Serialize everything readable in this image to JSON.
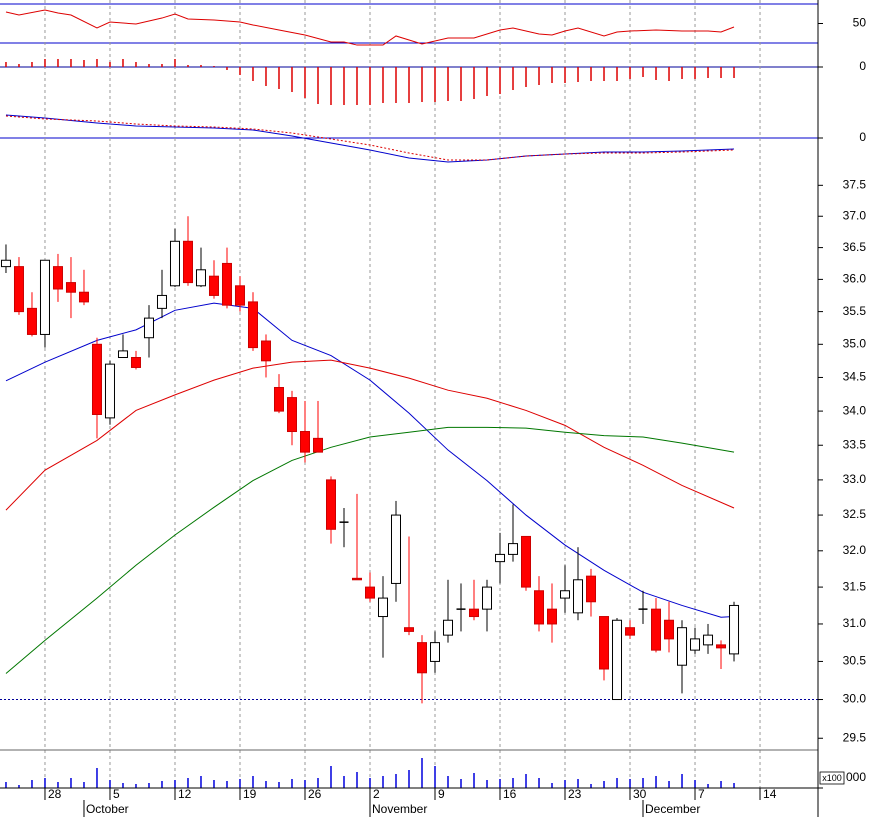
{
  "chart_data": [
    {
      "type": "line",
      "xlim": [
        -0.46,
        62.46
      ],
      "ylim": [
        17.7,
        74.1
      ],
      "yticks": [
        50
      ],
      "hlines": [
        30,
        70
      ],
      "hline_color": "#0000cc",
      "series": [
        {
          "color": "#dd0000",
          "x": [
            0,
            1,
            3,
            4,
            5,
            7,
            8,
            10,
            12,
            13,
            14,
            16,
            18,
            19,
            21,
            23,
            25,
            26,
            27,
            28,
            29,
            30,
            32,
            34,
            36,
            38,
            39,
            41,
            42,
            43,
            44,
            46,
            47,
            48,
            50,
            52,
            54,
            55,
            56
          ],
          "values": [
            61.8,
            58.7,
            63.8,
            60.8,
            58.7,
            45.4,
            51.5,
            49.5,
            55.6,
            59.7,
            54.6,
            53.6,
            51.5,
            48.5,
            43.3,
            38.2,
            31.0,
            31.0,
            27.9,
            27.9,
            27.9,
            37.2,
            29.0,
            35.1,
            35.1,
            43.3,
            45.4,
            39.2,
            38.2,
            42.3,
            45.4,
            37.2,
            41.3,
            42.3,
            43.3,
            42.3,
            42.3,
            41.3,
            46.4
          ]
        }
      ]
    },
    {
      "type": "bar",
      "xlim": [
        -0.46,
        62.46
      ],
      "ylim": [
        -43,
        12
      ],
      "yticks": [
        0
      ],
      "grid": true,
      "grid_color": "#000099",
      "color": "#dd0000",
      "x": [
        0,
        1,
        2,
        3,
        4,
        5,
        6,
        7,
        8,
        9,
        10,
        11,
        12,
        13,
        14,
        15,
        16,
        17,
        18,
        19,
        20,
        21,
        22,
        23,
        24,
        25,
        26,
        27,
        28,
        29,
        30,
        31,
        32,
        33,
        34,
        35,
        36,
        37,
        38,
        39,
        40,
        41,
        42,
        43,
        44,
        45,
        46,
        47,
        48,
        49,
        50,
        51,
        52,
        53,
        54,
        55,
        56
      ],
      "values": [
        5,
        3,
        5,
        8,
        8,
        8,
        7,
        8,
        5,
        8,
        5,
        3,
        3,
        8,
        2,
        2,
        1,
        -3,
        -8,
        -14,
        -19,
        -22,
        -25,
        -31,
        -37,
        -38,
        -38,
        -38,
        -38,
        -36,
        -36,
        -36,
        -35,
        -35,
        -34,
        -34,
        -32,
        -29,
        -27,
        -23,
        -20,
        -18,
        -16,
        -16,
        -15,
        -14,
        -14,
        -14,
        -12,
        -10,
        -13,
        -14,
        -12,
        -12,
        -11,
        -11,
        -11
      ]
    },
    {
      "type": "line",
      "xlim": [
        -0.46,
        62.46
      ],
      "ylim": [
        -32,
        28
      ],
      "yticks": [
        0
      ],
      "grid": true,
      "grid_color": "#0000cc",
      "series": [
        {
          "color": "#0000cc",
          "x": [
            0,
            3,
            7,
            10,
            13,
            16,
            19,
            22,
            25,
            28,
            31,
            34,
            37,
            40,
            43,
            46,
            49,
            52,
            56
          ],
          "values": [
            23,
            20,
            15,
            12,
            11,
            10,
            8,
            2,
            -5,
            -12,
            -20,
            -24,
            -22,
            -18,
            -16,
            -14,
            -14,
            -13,
            -11
          ]
        },
        {
          "color": "#dd0000",
          "dashed": true,
          "x": [
            0,
            3,
            7,
            10,
            13,
            16,
            19,
            22,
            25,
            28,
            31,
            34,
            37,
            40,
            43,
            46,
            49,
            52,
            56
          ],
          "values": [
            22,
            19,
            17,
            14,
            12,
            11,
            9,
            5,
            -1,
            -7,
            -15,
            -22,
            -22,
            -18,
            -16,
            -15,
            -15,
            -14,
            -12
          ]
        }
      ]
    },
    {
      "type": "candlestick",
      "log_scale": true,
      "xlim": [
        -0.46,
        62.46
      ],
      "ylim": [
        29.35,
        37.75
      ],
      "yticks": [
        29.5,
        {
          "value": 30,
          "label": "30.0"
        },
        30.5,
        {
          "value": 31,
          "label": "31.0"
        },
        31.5,
        {
          "value": 32,
          "label": "32.0"
        },
        32.5,
        {
          "value": 33,
          "label": "33.0"
        },
        33.5,
        {
          "value": 34,
          "label": "34.0"
        },
        34.5,
        {
          "value": 35,
          "label": "35.0"
        },
        35.5,
        {
          "value": 36,
          "label": "36.0"
        },
        36.5,
        {
          "value": 37,
          "label": "37.0"
        },
        37.5
      ],
      "hlines": [
        30
      ],
      "hline_color": "#000099",
      "hline_dashed": true,
      "up_color": "#ffffff",
      "down_color": "#ff0000",
      "doji_color": "#000000",
      "candles": {
        "x": [
          0,
          1,
          2,
          3,
          4,
          5,
          6,
          7,
          8,
          9,
          10,
          11,
          12,
          13,
          14,
          15,
          16,
          17,
          18,
          19,
          20,
          21,
          22,
          23,
          24,
          25,
          26,
          27,
          28,
          29,
          30,
          31,
          32,
          33,
          34,
          35,
          36,
          37,
          38,
          39,
          40,
          41,
          42,
          43,
          44,
          45,
          46,
          47,
          48,
          49,
          50,
          51,
          52,
          53,
          54,
          55,
          56
        ],
        "open": [
          36.2,
          36.2,
          35.55,
          35.15,
          36.2,
          35.95,
          35.8,
          35.0,
          33.9,
          34.8,
          34.8,
          35.1,
          35.55,
          35.9,
          36.6,
          35.9,
          36.05,
          36.25,
          35.9,
          35.65,
          35.05,
          34.35,
          34.2,
          33.7,
          33.6,
          33.0,
          32.4,
          31.62,
          31.5,
          31.1,
          31.55,
          30.95,
          30.75,
          30.5,
          30.85,
          31.2,
          31.2,
          31.2,
          31.85,
          31.95,
          32.2,
          31.45,
          31.2,
          31.35,
          31.15,
          31.65,
          31.1,
          30.0,
          30.95,
          31.2,
          31.2,
          31.05,
          30.45,
          30.65,
          30.72,
          30.72,
          30.6
        ],
        "high": [
          36.55,
          36.35,
          35.8,
          36.3,
          36.4,
          36.35,
          36.15,
          35.1,
          34.75,
          35.15,
          34.9,
          35.6,
          36.15,
          36.8,
          37.0,
          36.5,
          36.3,
          36.5,
          36.05,
          35.8,
          35.15,
          34.55,
          34.3,
          34.15,
          34.15,
          33.05,
          32.6,
          32.8,
          31.7,
          31.65,
          32.7,
          32.2,
          30.85,
          30.9,
          31.6,
          31.55,
          31.6,
          31.6,
          32.25,
          32.65,
          32.2,
          31.65,
          31.55,
          31.8,
          32.05,
          31.75,
          31.1,
          31.08,
          31.05,
          31.45,
          31.35,
          31.3,
          31.05,
          30.95,
          31.0,
          30.78,
          31.3
        ],
        "low": [
          36.1,
          35.45,
          35.12,
          34.95,
          35.65,
          35.4,
          35.6,
          33.6,
          33.8,
          34.8,
          34.62,
          34.8,
          35.4,
          35.88,
          35.9,
          35.88,
          35.7,
          35.55,
          35.5,
          34.9,
          34.5,
          33.97,
          33.5,
          33.25,
          33.4,
          32.1,
          32.05,
          31.6,
          31.3,
          30.55,
          31.3,
          30.85,
          29.95,
          30.35,
          30.75,
          30.9,
          31.05,
          30.9,
          31.55,
          31.85,
          31.45,
          30.9,
          30.75,
          31.15,
          31.05,
          31.1,
          30.25,
          30.0,
          30.8,
          31.0,
          30.62,
          30.62,
          30.08,
          30.6,
          30.6,
          30.4,
          30.5
        ],
        "close": [
          36.3,
          35.5,
          35.15,
          36.3,
          35.85,
          35.8,
          35.65,
          33.95,
          34.7,
          34.9,
          34.65,
          35.4,
          35.75,
          36.6,
          35.95,
          36.15,
          35.75,
          35.6,
          35.6,
          34.95,
          34.75,
          34.0,
          33.7,
          33.4,
          33.4,
          32.3,
          32.4,
          31.6,
          31.35,
          31.35,
          32.5,
          30.9,
          30.35,
          30.75,
          31.05,
          31.2,
          31.1,
          31.5,
          31.95,
          32.1,
          31.5,
          31.0,
          31.0,
          31.45,
          31.6,
          31.3,
          30.4,
          31.05,
          30.85,
          31.2,
          30.65,
          30.8,
          30.95,
          30.8,
          30.85,
          30.68,
          31.25
        ]
      },
      "series": [
        {
          "color": "#0000cc",
          "x": [
            0,
            3,
            7,
            10,
            13,
            16,
            19,
            22,
            25,
            28,
            31,
            34,
            37,
            40,
            43,
            46,
            49,
            52,
            55,
            56
          ],
          "values": [
            34.45,
            34.73,
            35.06,
            35.22,
            35.52,
            35.63,
            35.55,
            35.06,
            34.83,
            34.46,
            33.97,
            33.43,
            32.99,
            32.5,
            32.08,
            31.73,
            31.43,
            31.25,
            31.09,
            31.1
          ]
        },
        {
          "color": "#dd0000",
          "x": [
            0,
            3,
            7,
            10,
            13,
            16,
            19,
            22,
            25,
            28,
            31,
            34,
            37,
            40,
            43,
            46,
            49,
            52,
            56
          ],
          "values": [
            32.57,
            33.14,
            33.57,
            34.01,
            34.24,
            34.46,
            34.64,
            34.73,
            34.76,
            34.64,
            34.49,
            34.31,
            34.19,
            34.01,
            33.79,
            33.47,
            33.21,
            32.92,
            32.6
          ]
        },
        {
          "color": "#007700",
          "x": [
            0,
            3,
            7,
            10,
            13,
            16,
            19,
            22,
            25,
            28,
            31,
            34,
            37,
            40,
            43,
            46,
            49,
            52,
            56
          ],
          "values": [
            30.34,
            30.78,
            31.35,
            31.8,
            32.22,
            32.61,
            32.99,
            33.28,
            33.47,
            33.62,
            33.69,
            33.76,
            33.76,
            33.75,
            33.69,
            33.64,
            33.62,
            33.53,
            33.4
          ]
        }
      ]
    },
    {
      "type": "bar",
      "xlim": [
        -0.46,
        62.46
      ],
      "ylim": [
        0,
        38
      ],
      "color": "#0000dd",
      "unit_label": "x100",
      "yticks": [
        {
          "value": 0,
          "label": "000"
        }
      ],
      "x": [
        0,
        1,
        2,
        3,
        4,
        5,
        6,
        7,
        8,
        9,
        10,
        11,
        12,
        13,
        14,
        15,
        16,
        17,
        18,
        19,
        20,
        21,
        22,
        23,
        24,
        25,
        26,
        27,
        28,
        29,
        30,
        31,
        32,
        33,
        34,
        35,
        36,
        37,
        38,
        39,
        40,
        41,
        42,
        43,
        44,
        45,
        46,
        47,
        48,
        49,
        50,
        51,
        52,
        53,
        54,
        55,
        56
      ],
      "values": [
        6,
        3,
        8,
        10,
        6,
        10,
        6,
        20,
        8,
        5,
        4,
        5,
        7,
        8,
        10,
        12,
        8,
        7,
        9,
        12,
        7,
        6,
        9,
        8,
        10,
        22,
        12,
        16,
        10,
        12,
        14,
        18,
        30,
        22,
        12,
        9,
        15,
        8,
        9,
        10,
        14,
        10,
        5,
        8,
        9,
        4,
        7,
        10,
        9,
        10,
        12,
        7,
        14,
        8,
        4,
        7,
        5
      ],
      "xticks": [
        {
          "value": 3,
          "label": "28"
        },
        {
          "value": 8,
          "label": "5"
        },
        {
          "value": 13,
          "label": "12"
        },
        {
          "value": 18,
          "label": "19"
        },
        {
          "value": 23,
          "label": "26"
        },
        {
          "value": 28,
          "label": "2"
        },
        {
          "value": 33,
          "label": "9"
        },
        {
          "value": 38,
          "label": "16"
        },
        {
          "value": 43,
          "label": "23"
        },
        {
          "value": 48,
          "label": "30"
        },
        {
          "value": 53,
          "label": "7"
        },
        {
          "value": 58,
          "label": "14"
        }
      ],
      "month_ticks": [
        {
          "value": 6,
          "label": "October"
        },
        {
          "value": 28,
          "label": "November"
        },
        {
          "value": 49,
          "label": "December"
        }
      ]
    }
  ]
}
